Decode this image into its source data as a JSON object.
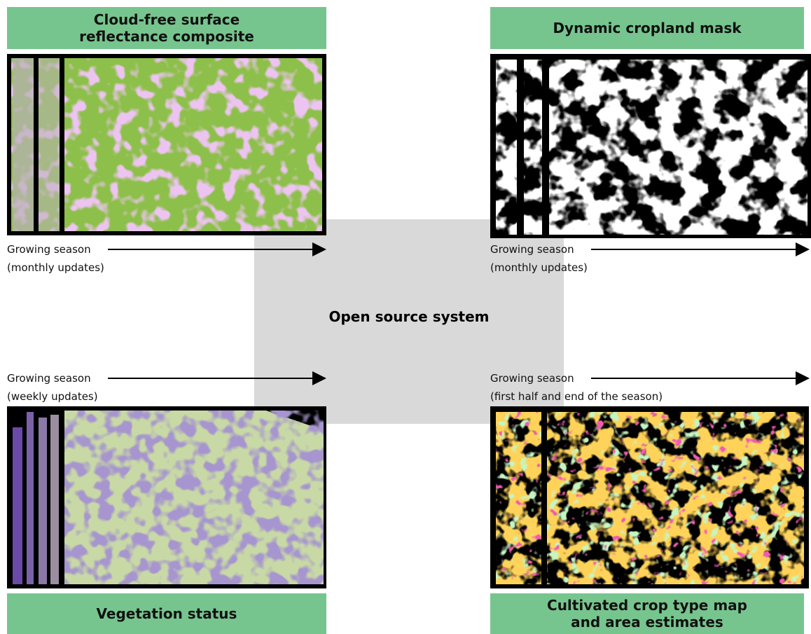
{
  "center_label": "Open source system",
  "panels": [
    {
      "title": [
        "Cloud-free surface",
        "reflectance composite"
      ],
      "caption": [
        "Growing season",
        "(monthly updates)"
      ]
    },
    {
      "title": [
        "Dynamic cropland mask"
      ],
      "caption": [
        "Growing season",
        "(monthly updates)"
      ]
    },
    {
      "title": [
        "Vegetation status"
      ],
      "caption": [
        "Growing season",
        "(weekly updates)"
      ]
    },
    {
      "title": [
        "Cultivated crop type map",
        "and area estimates"
      ],
      "caption": [
        "Growing season",
        "(first half and end of the season)"
      ]
    }
  ]
}
